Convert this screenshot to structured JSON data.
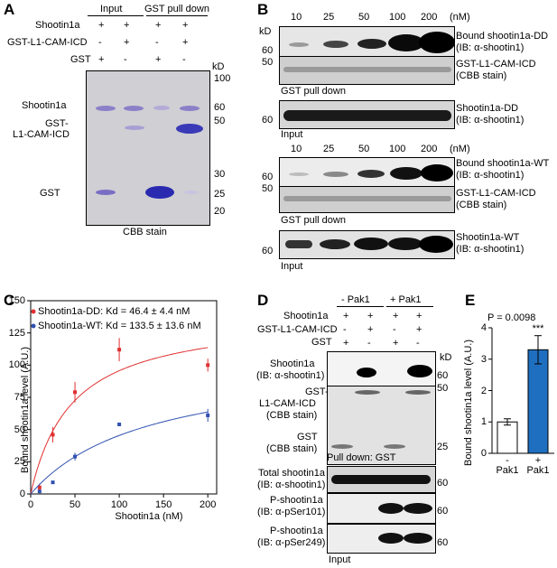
{
  "panel_labels": {
    "a": "A",
    "b": "B",
    "c": "C",
    "d": "D",
    "e": "E"
  },
  "panel_a": {
    "header_input": "Input",
    "header_pulldown": "GST pull down",
    "rows": [
      {
        "label": "Shootin1a",
        "signs": [
          "+",
          "+",
          "+",
          "+"
        ]
      },
      {
        "label": "GST-L1-CAM-ICD",
        "signs": [
          "-",
          "+",
          "-",
          "+"
        ]
      },
      {
        "label": "GST",
        "signs": [
          "+",
          "-",
          "+",
          "-"
        ]
      }
    ],
    "band_labels": {
      "shootin": "Shootin1a",
      "gst_l1_a": "GST-",
      "gst_l1_b": "L1-CAM-ICD",
      "gst": "GST"
    },
    "kd_label": "kD",
    "markers": [
      "100",
      "60",
      "50",
      "30",
      "25",
      "20"
    ],
    "stain_label": "CBB stain"
  },
  "panel_b": {
    "conc_labels": [
      "10",
      "25",
      "50",
      "100",
      "200"
    ],
    "conc_unit": "(nM)",
    "kd_label": "kD",
    "blots": [
      {
        "marker": "60",
        "label1": "Bound shootin1a-DD",
        "label2": "(IB: α-shootin1)"
      },
      {
        "marker": "50",
        "label1": "GST-L1-CAM-ICD",
        "label2": "(CBB stain)"
      },
      {
        "marker": "60",
        "label1": "Shootin1a-DD",
        "label2": "(IB: α-shootin1)"
      },
      {
        "marker": "60",
        "label1": "Bound shootin1a-WT",
        "label2": "(IB: α-shootin1)"
      },
      {
        "marker": "50",
        "label1": "GST-L1-CAM-ICD",
        "label2": "(CBB stain)"
      },
      {
        "marker": "60",
        "label1": "Shootin1a-WT",
        "label2": "(IB: α-shootin1)"
      }
    ],
    "caption_pulldown1": "GST pull down",
    "caption_input1": "Input",
    "caption_pulldown2": "GST pull down",
    "caption_input2": "Input"
  },
  "panel_d": {
    "header_minus": "- Pak1",
    "header_plus": "+ Pak1",
    "rows": [
      {
        "label": "Shootin1a",
        "signs": [
          "+",
          "+",
          "+",
          "+"
        ]
      },
      {
        "label": "GST-L1-CAM-ICD",
        "signs": [
          "-",
          "+",
          "-",
          "+"
        ]
      },
      {
        "label": "GST",
        "signs": [
          "+",
          "-",
          "+",
          "-"
        ]
      }
    ],
    "kd_label": "kD",
    "blots": [
      {
        "name1": "Shootin1a",
        "name2": "(IB: α-shootin1)",
        "marker": "60"
      },
      {
        "name1": "GST-",
        "name2": "L1-CAM-ICD",
        "name3": "(CBB stain)",
        "marker": "50"
      },
      {
        "name1": "GST",
        "name2": "(CBB stain)",
        "marker": "25"
      },
      {
        "name1": "Total shootin1a",
        "name2": "(IB: α-shootin1)",
        "marker": "60"
      },
      {
        "name1": "P-shootin1a",
        "name2": "(IB: α-pSer101)",
        "marker": "60"
      },
      {
        "name1": "P-shootin1a",
        "name2": "(IB: α-pSer249)",
        "marker": "60"
      }
    ],
    "caption_pulldown": "Pull down: GST",
    "caption_input": "Input"
  },
  "chart_data": [
    {
      "type": "scatter",
      "xlabel": "Shootin1a (nM)",
      "ylabel": "Bound shootin1a level (A.U.)",
      "xlim": [
        0,
        210
      ],
      "ylim": [
        0,
        150
      ],
      "xticks": [
        0,
        50,
        100,
        150,
        200
      ],
      "yticks": [
        0,
        25,
        50,
        75,
        100,
        125,
        150
      ],
      "series": [
        {
          "name": "Shootin1a-DD: Kd = 46.4 ± 4.4 nM",
          "color": "#e03030",
          "x": [
            10,
            25,
            50,
            100,
            200
          ],
          "y": [
            5,
            46,
            79,
            112,
            100
          ],
          "err": [
            3,
            6,
            8,
            9,
            5
          ],
          "fit": {
            "bmax": 140,
            "kd": 46.4
          }
        },
        {
          "name": "Shootin1a-WT: Kd = 133.5 ± 13.6 nM",
          "color": "#3050b0",
          "x": [
            10,
            25,
            50,
            100,
            200
          ],
          "y": [
            2,
            9,
            29,
            54,
            61
          ],
          "err": [
            1,
            1,
            3,
            1,
            5
          ],
          "fit": {
            "bmax": 106,
            "kd": 133.5
          }
        }
      ]
    },
    {
      "type": "bar",
      "categories": [
        "-",
        "+"
      ],
      "category_sublabels": [
        "Pak1",
        "Pak1"
      ],
      "values": [
        1.0,
        3.3
      ],
      "err": [
        0.1,
        0.45
      ],
      "colors": [
        "#ffffff",
        "#1f6fc0"
      ],
      "ylabel": "Bound shootin1a level (A.U.)",
      "ylim": [
        0,
        4
      ],
      "yticks": [
        0,
        1,
        2,
        3,
        4
      ],
      "pvalue": "P = 0.0098",
      "significance": "***"
    }
  ]
}
